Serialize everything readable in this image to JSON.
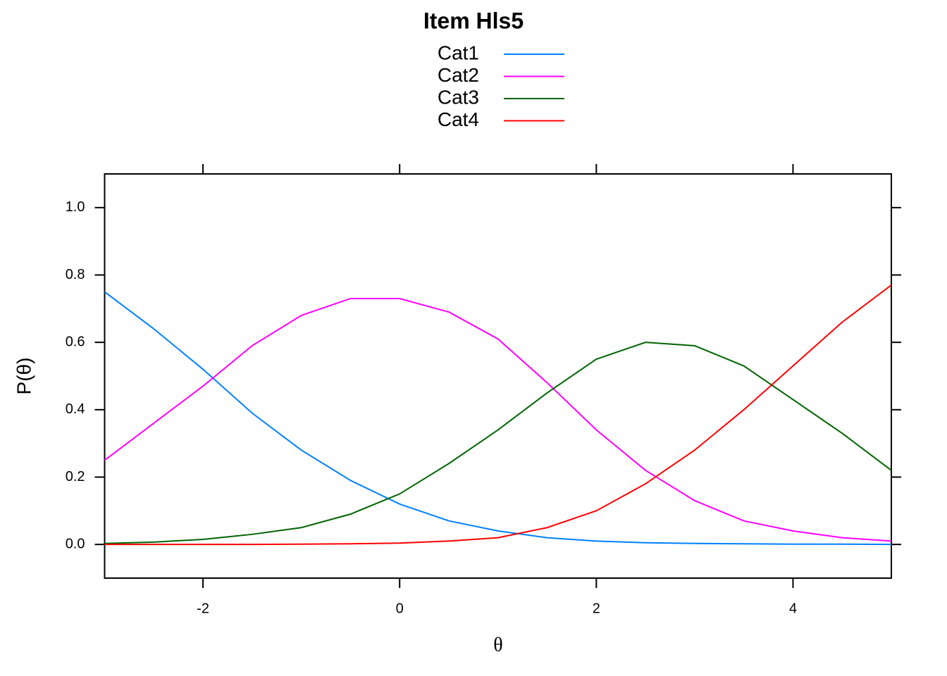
{
  "chart_data": {
    "type": "line",
    "title": "Item Hls5",
    "xlabel": "θ",
    "ylabel": "P(θ)",
    "x": [
      -3,
      -2.5,
      -2,
      -1.5,
      -1,
      -0.5,
      0,
      0.5,
      1,
      1.5,
      2,
      2.5,
      3,
      3.5,
      4,
      4.5,
      5
    ],
    "series": [
      {
        "name": "Cat1",
        "color": "#0080ff",
        "values": [
          0.75,
          0.64,
          0.52,
          0.39,
          0.28,
          0.19,
          0.12,
          0.07,
          0.04,
          0.02,
          0.01,
          0.005,
          0.003,
          0.002,
          0.001,
          0.001,
          0.0
        ]
      },
      {
        "name": "Cat2",
        "color": "#ff00ff",
        "values": [
          0.25,
          0.36,
          0.47,
          0.59,
          0.68,
          0.73,
          0.73,
          0.69,
          0.61,
          0.48,
          0.34,
          0.22,
          0.13,
          0.07,
          0.04,
          0.02,
          0.01
        ]
      },
      {
        "name": "Cat3",
        "color": "#006400",
        "values": [
          0.003,
          0.007,
          0.015,
          0.03,
          0.05,
          0.09,
          0.15,
          0.24,
          0.34,
          0.45,
          0.55,
          0.6,
          0.59,
          0.53,
          0.43,
          0.33,
          0.22
        ]
      },
      {
        "name": "Cat4",
        "color": "#ff0000",
        "values": [
          0.0,
          0.0,
          0.0,
          0.0,
          0.001,
          0.002,
          0.004,
          0.01,
          0.02,
          0.05,
          0.1,
          0.18,
          0.28,
          0.4,
          0.53,
          0.66,
          0.77
        ]
      }
    ],
    "xlim": [
      -3,
      5
    ],
    "ylim": [
      -0.1,
      1.1
    ],
    "xticks": [
      -2,
      0,
      2,
      4
    ],
    "yticks": [
      {
        "value": 0,
        "label": "0.0"
      },
      0.2,
      0.4,
      0.6,
      0.8,
      {
        "value": 1,
        "label": "1.0"
      }
    ],
    "legend": "top"
  }
}
